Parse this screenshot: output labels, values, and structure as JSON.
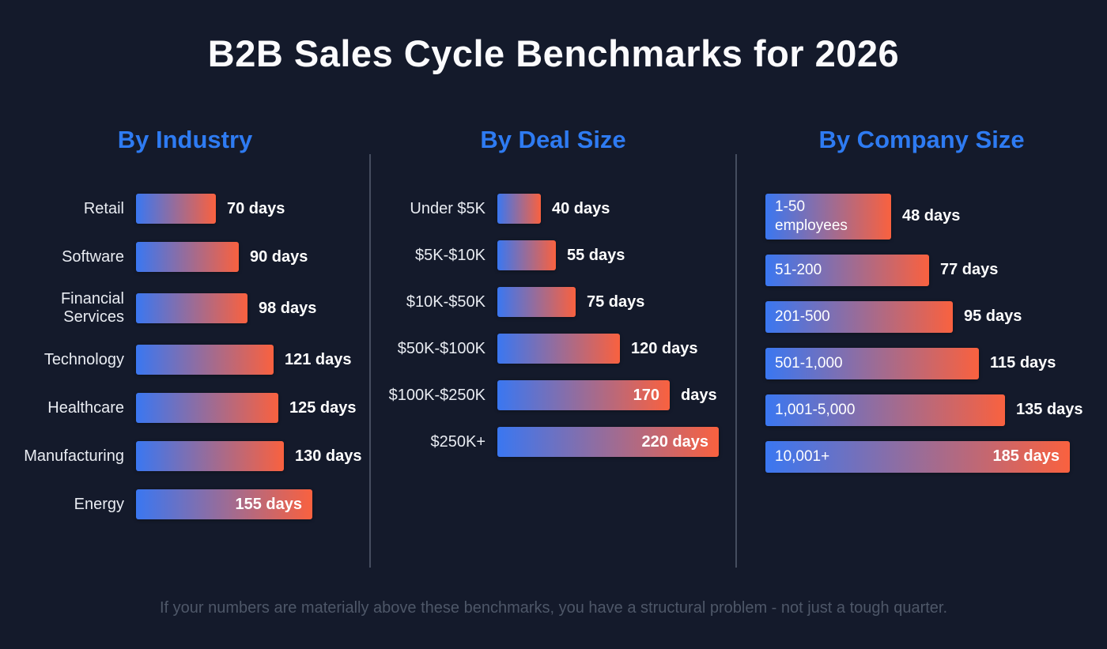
{
  "title": "B2B Sales Cycle Benchmarks for 2026",
  "footer": "If your numbers are materially above these benchmarks, you have a structural problem - not just a tough quarter.",
  "colors": {
    "background": "#141a2b",
    "accent_blue": "#2e7bf2",
    "bar_gradient_start": "#3a77f1",
    "bar_gradient_end": "#f9613f",
    "value_text": "#ffffff",
    "footer_text": "#4e5768"
  },
  "chart_data": [
    {
      "type": "bar",
      "orientation": "horizontal",
      "title": "By Industry",
      "unit": "days",
      "categories": [
        "Retail",
        "Software",
        "Financial Services",
        "Technology",
        "Healthcare",
        "Manufacturing",
        "Energy"
      ],
      "values": [
        70,
        90,
        98,
        121,
        125,
        130,
        155
      ],
      "rows": [
        {
          "label": "Retail",
          "days": 70,
          "label_pos": "outside",
          "value_pos": "outside"
        },
        {
          "label": "Software",
          "days": 90,
          "label_pos": "outside",
          "value_pos": "outside"
        },
        {
          "label": "Financial Services",
          "days": 98,
          "label_pos": "outside",
          "value_pos": "outside"
        },
        {
          "label": "Technology",
          "days": 121,
          "label_pos": "outside",
          "value_pos": "outside"
        },
        {
          "label": "Healthcare",
          "days": 125,
          "label_pos": "outside",
          "value_pos": "outside"
        },
        {
          "label": "Manufacturing",
          "days": 130,
          "label_pos": "outside",
          "value_pos": "outside"
        },
        {
          "label": "Energy",
          "days": 155,
          "label_pos": "outside",
          "value_pos": "inside"
        }
      ]
    },
    {
      "type": "bar",
      "orientation": "horizontal",
      "title": "By Deal Size",
      "unit": "days",
      "categories": [
        "Under $5K",
        "$5K-$10K",
        "$10K-$50K",
        "$50K-$100K",
        "$100K-$250K",
        "$250K+"
      ],
      "values": [
        40,
        55,
        75,
        120,
        170,
        220
      ],
      "rows": [
        {
          "label": "Under $5K",
          "days": 40,
          "label_pos": "outside",
          "value_pos": "outside"
        },
        {
          "label": "$5K-$10K",
          "days": 55,
          "label_pos": "outside",
          "value_pos": "outside"
        },
        {
          "label": "$10K-$50K",
          "days": 75,
          "label_pos": "outside",
          "value_pos": "outside"
        },
        {
          "label": "$50K-$100K",
          "days": 120,
          "label_pos": "outside",
          "value_pos": "outside"
        },
        {
          "label": "$100K-$250K",
          "days": 170,
          "label_pos": "outside",
          "value_pos": "split"
        },
        {
          "label": "$250K+",
          "days": 220,
          "label_pos": "outside",
          "value_pos": "inside"
        }
      ]
    },
    {
      "type": "bar",
      "orientation": "horizontal",
      "title": "By Company Size",
      "unit": "days",
      "categories": [
        "1-50 employees",
        "51-200",
        "201-500",
        "501-1,000",
        "1,001-5,000",
        "10,001+"
      ],
      "values": [
        48,
        77,
        95,
        115,
        135,
        185
      ],
      "rows": [
        {
          "label": "1-50\nemployees",
          "days": 48,
          "label_pos": "inside",
          "value_pos": "outside"
        },
        {
          "label": "51-200",
          "days": 77,
          "label_pos": "inside",
          "value_pos": "outside"
        },
        {
          "label": "201-500",
          "days": 95,
          "label_pos": "inside",
          "value_pos": "outside"
        },
        {
          "label": "501-1,000",
          "days": 115,
          "label_pos": "inside",
          "value_pos": "outside"
        },
        {
          "label": "1,001-5,000",
          "days": 135,
          "label_pos": "inside",
          "value_pos": "outside"
        },
        {
          "label": "10,001+",
          "days": 185,
          "label_pos": "inside",
          "value_pos": "inside"
        }
      ]
    }
  ]
}
